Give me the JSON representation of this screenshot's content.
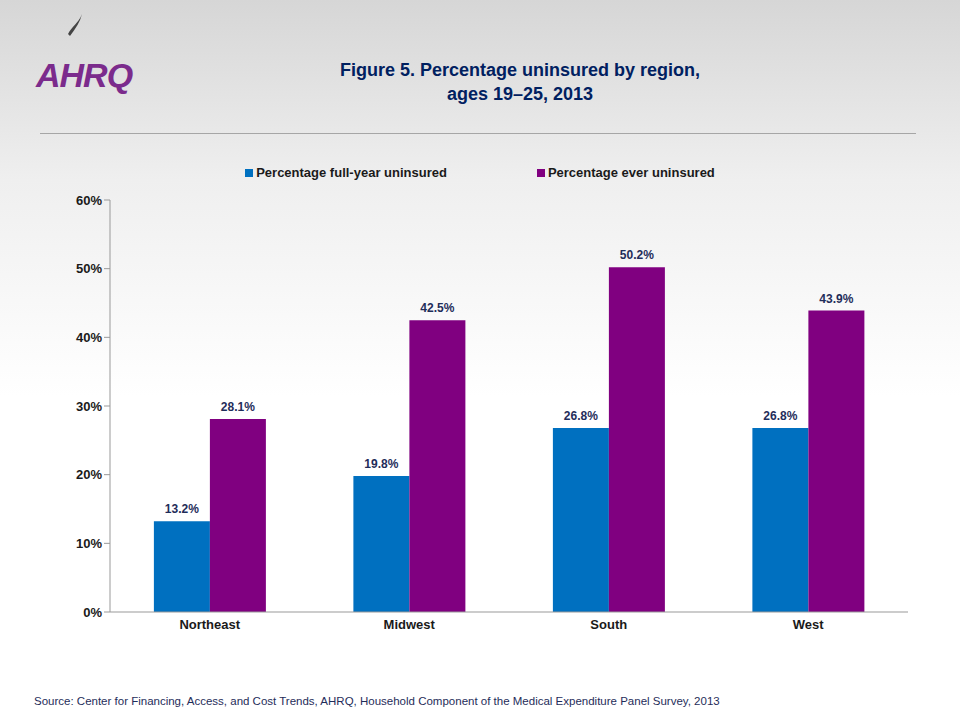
{
  "chart_data": {
    "type": "bar",
    "title": "Figure 5. Percentage uninsured by region, ages 19–25, 2013",
    "logo": "AHRQ",
    "source": "Source: Center for Financing, Access, and Cost Trends, AHRQ, Household Component of the Medical Expenditure Panel Survey, 2013",
    "categories": [
      "Northeast",
      "Midwest",
      "South",
      "West"
    ],
    "series": [
      {
        "name": "Percentage full-year uninsured",
        "color": "#0070c0",
        "values": [
          13.2,
          19.8,
          26.8,
          26.8
        ],
        "value_labels": [
          "13.2%",
          "19.8%",
          "26.8%",
          "26.8%"
        ]
      },
      {
        "name": "Percentage ever uninsured",
        "color": "#800080",
        "values": [
          28.1,
          42.5,
          50.2,
          43.9
        ],
        "value_labels": [
          "28.1%",
          "42.5%",
          "50.2%",
          "43.9%"
        ]
      }
    ],
    "ylim": [
      0,
      60
    ],
    "yticks": [
      {
        "value": 0,
        "label": "0%"
      },
      {
        "value": 10,
        "label": "10%"
      },
      {
        "value": 20,
        "label": "20%"
      },
      {
        "value": 30,
        "label": "30%"
      },
      {
        "value": 40,
        "label": "40%"
      },
      {
        "value": 50,
        "label": "50%"
      },
      {
        "value": 60,
        "label": "60%"
      }
    ],
    "grid": false,
    "legend": "top",
    "data_labels": true
  }
}
